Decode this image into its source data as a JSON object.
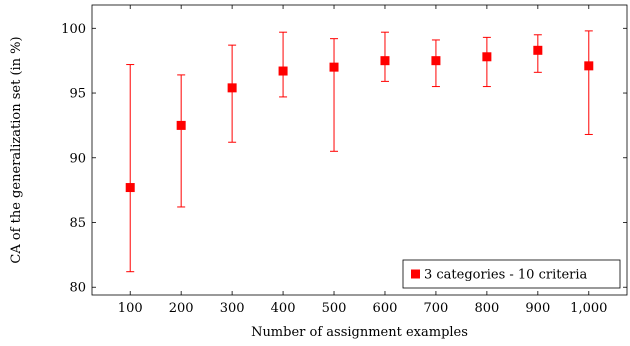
{
  "chart_data": {
    "type": "scatter",
    "title": "",
    "xlabel": "Number of assignment examples",
    "ylabel": "CA of the generalization set (in %)",
    "x_tick_labels": [
      "100",
      "200",
      "300",
      "400",
      "500",
      "600",
      "700",
      "800",
      "900",
      "1,000"
    ],
    "y_tick_labels": [
      "80",
      "85",
      "90",
      "95",
      "100"
    ],
    "x_ticks": [
      100,
      200,
      300,
      400,
      500,
      600,
      700,
      800,
      900,
      1000
    ],
    "y_ticks": [
      80,
      85,
      90,
      95,
      100
    ],
    "xlim": [
      25,
      1075
    ],
    "ylim": [
      79.4,
      101.8
    ],
    "grid": false,
    "legend_position": "bottom-right",
    "series": [
      {
        "name": "3 categories - 10 criteria",
        "color": "#ff0000",
        "marker": "square",
        "x": [
          100,
          200,
          300,
          400,
          500,
          600,
          700,
          800,
          900,
          1000
        ],
        "y": [
          87.7,
          92.5,
          95.4,
          96.7,
          97.0,
          97.5,
          97.5,
          97.8,
          98.3,
          97.1
        ],
        "err_low": [
          81.2,
          86.2,
          91.2,
          94.7,
          90.5,
          95.9,
          95.5,
          95.5,
          96.6,
          91.8
        ],
        "err_high": [
          97.2,
          96.4,
          98.7,
          99.7,
          99.2,
          99.7,
          99.1,
          99.3,
          99.5,
          99.8
        ]
      }
    ]
  }
}
